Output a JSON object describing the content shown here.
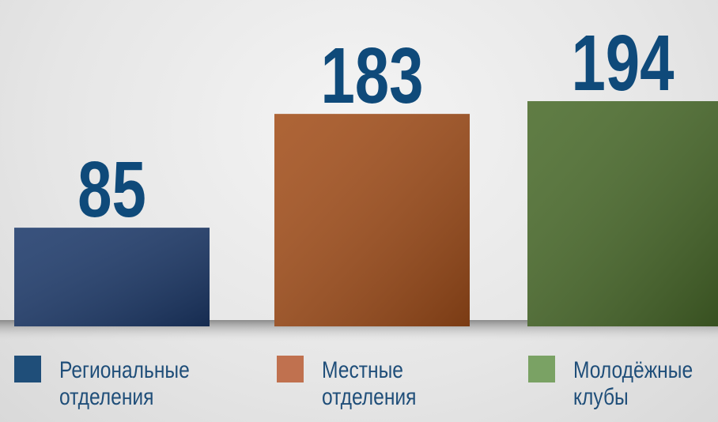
{
  "chart_data": {
    "type": "bar",
    "categories": [
      "Региональные отделения",
      "Местные отделения",
      "Молодёжные клубы"
    ],
    "values": [
      85,
      183,
      194
    ],
    "colors": [
      "#1d3a6b",
      "#a34f1b",
      "#4a6b2b"
    ],
    "legend_colors": [
      "#1f4e79",
      "#c0714f",
      "#7aa264"
    ],
    "label_color": "#0f4a7a"
  }
}
